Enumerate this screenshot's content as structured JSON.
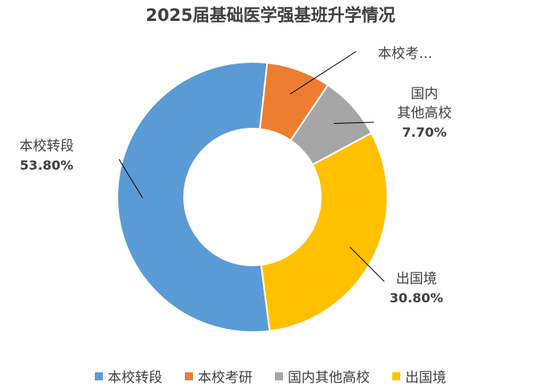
{
  "chart_data": {
    "type": "pie",
    "title": "2025届基础医学强基班升学情况",
    "donut": true,
    "categories": [
      "本校转段",
      "本校考研",
      "国内其他高校",
      "出国境"
    ],
    "values": [
      53.8,
      7.7,
      7.7,
      30.8
    ],
    "colors": [
      "#5B9BD5",
      "#ED7D31",
      "#A5A5A5",
      "#FFC000"
    ],
    "data_labels": [
      {
        "lines": [
          "本校转段"
        ],
        "value": "53.80%"
      },
      {
        "lines": [
          "本校考…"
        ],
        "value": ""
      },
      {
        "lines": [
          "国内",
          "其他高校"
        ],
        "value": "7.70%"
      },
      {
        "lines": [
          "出国境"
        ],
        "value": "30.80%"
      }
    ],
    "legend": {
      "position": "bottom",
      "entries": [
        "本校转段",
        "本校考研",
        "国内其他高校",
        "出国境"
      ]
    }
  }
}
